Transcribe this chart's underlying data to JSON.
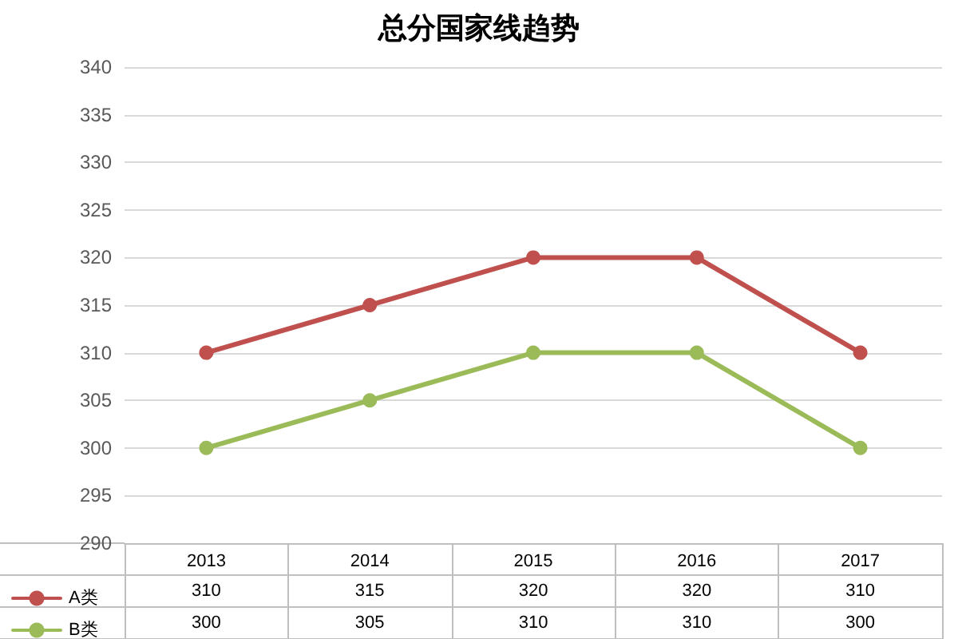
{
  "chart_data": {
    "type": "line",
    "title": "总分国家线趋势",
    "categories": [
      "2013",
      "2014",
      "2015",
      "2016",
      "2017"
    ],
    "series": [
      {
        "name": "A类",
        "color": "#c0504d",
        "values": [
          310,
          315,
          320,
          320,
          310
        ]
      },
      {
        "name": "B类",
        "color": "#9bbb59",
        "values": [
          300,
          305,
          310,
          310,
          300
        ]
      }
    ],
    "ylim": [
      290,
      340
    ],
    "yticks": [
      290,
      295,
      300,
      305,
      310,
      315,
      320,
      325,
      330,
      335,
      340
    ],
    "grid": "y",
    "legend": "bottom left",
    "marker": "circle",
    "line_style": "solid",
    "data_labels": true
  }
}
